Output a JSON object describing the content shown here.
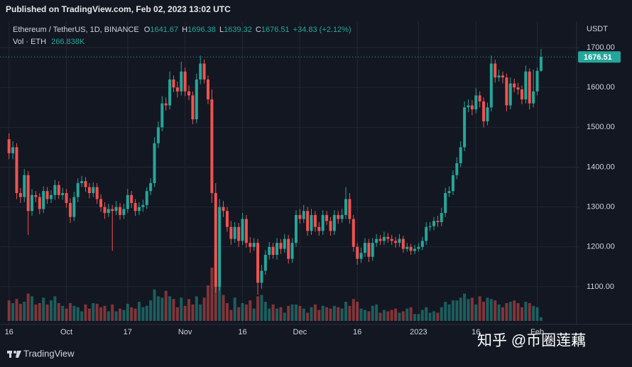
{
  "chart_data": {
    "type": "candlestick",
    "title": "Published on TradingView.com, Feb 02, 2023 13:02 UTC",
    "symbol": "Ethereum / TetherUS, 1D, BINANCE",
    "legend_keys": [
      "O",
      "H",
      "L",
      "C"
    ],
    "change_label": "+34.83 (+2.12%)",
    "volume_title": "Vol · ETH",
    "volume_label": "266.838K",
    "currency": "USDT",
    "watermark": "知乎 @币圈莲藕",
    "brand": "TradingView",
    "up_color": "#26a69a",
    "down_color": "#ef5350",
    "grid": true,
    "ylim": [
      1009,
      1766
    ],
    "yticks": [
      {
        "value": 1100,
        "label": "1100.00"
      },
      {
        "value": 1200,
        "label": "1200.00"
      },
      {
        "value": 1300,
        "label": "1300.00"
      },
      {
        "value": 1400,
        "label": "1400.00"
      },
      {
        "value": 1500,
        "label": "1500.00"
      },
      {
        "value": 1600,
        "label": "1600.00"
      },
      {
        "value": 1700,
        "label": "1700.00"
      }
    ],
    "xticks": [
      {
        "value": 0,
        "label": "16"
      },
      {
        "value": 15,
        "label": "Oct"
      },
      {
        "value": 31,
        "label": "17"
      },
      {
        "value": 46,
        "label": "Nov"
      },
      {
        "value": 61,
        "label": "16"
      },
      {
        "value": 76,
        "label": "Dec"
      },
      {
        "value": 91,
        "label": "16"
      },
      {
        "value": 107,
        "label": "2023"
      },
      {
        "value": 122,
        "label": "16"
      },
      {
        "value": 138,
        "label": "Feb"
      }
    ],
    "open": [
      1470,
      1435,
      1450,
      1335,
      1325,
      1380,
      1290,
      1330,
      1325,
      1295,
      1340,
      1320,
      1330,
      1355,
      1330,
      1335,
      1310,
      1275,
      1325,
      1360,
      1365,
      1350,
      1335,
      1350,
      1320,
      1300,
      1285,
      1295,
      1290,
      1300,
      1280,
      1295,
      1330,
      1310,
      1290,
      1300,
      1305,
      1340,
      1360,
      1460,
      1500,
      1560,
      1555,
      1620,
      1600,
      1590,
      1640,
      1590,
      1580,
      1520,
      1620,
      1660,
      1620,
      1570,
      1335,
      1100,
      1300,
      1290,
      1250,
      1220,
      1250,
      1215,
      1270,
      1210,
      1200,
      1210,
      1110,
      1140,
      1180,
      1200,
      1180,
      1210,
      1195,
      1220,
      1170,
      1210,
      1280,
      1270,
      1290,
      1240,
      1280,
      1250,
      1240,
      1280,
      1265,
      1240,
      1280,
      1270,
      1280,
      1320,
      1270,
      1200,
      1170,
      1185,
      1210,
      1175,
      1210,
      1220,
      1215,
      1225,
      1220,
      1215,
      1210,
      1220,
      1195,
      1200,
      1190,
      1195,
      1200,
      1215,
      1250,
      1252,
      1265,
      1262,
      1285,
      1335,
      1340,
      1380,
      1410,
      1450,
      1550,
      1555,
      1545,
      1580,
      1565,
      1515,
      1550,
      1660,
      1625,
      1630,
      1625,
      1555,
      1610,
      1600,
      1595,
      1570,
      1640,
      1560,
      1590,
      1641.67
    ],
    "high": [
      1485,
      1465,
      1460,
      1348,
      1395,
      1390,
      1345,
      1340,
      1335,
      1352,
      1350,
      1342,
      1368,
      1365,
      1348,
      1345,
      1322,
      1338,
      1372,
      1378,
      1375,
      1360,
      1362,
      1360,
      1332,
      1312,
      1308,
      1305,
      1315,
      1310,
      1308,
      1345,
      1340,
      1320,
      1312,
      1318,
      1350,
      1372,
      1475,
      1515,
      1578,
      1575,
      1640,
      1630,
      1615,
      1665,
      1650,
      1605,
      1590,
      1635,
      1680,
      1670,
      1630,
      1595,
      1360,
      1320,
      1315,
      1300,
      1265,
      1262,
      1260,
      1285,
      1280,
      1225,
      1222,
      1220,
      1155,
      1192,
      1212,
      1210,
      1222,
      1220,
      1232,
      1230,
      1222,
      1292,
      1295,
      1305,
      1300,
      1295,
      1290,
      1262,
      1292,
      1290,
      1275,
      1292,
      1290,
      1295,
      1350,
      1335,
      1280,
      1210,
      1198,
      1222,
      1220,
      1222,
      1232,
      1230,
      1238,
      1235,
      1230,
      1225,
      1232,
      1228,
      1210,
      1208,
      1205,
      1210,
      1225,
      1262,
      1262,
      1275,
      1278,
      1298,
      1348,
      1352,
      1392,
      1425,
      1465,
      1565,
      1570,
      1568,
      1598,
      1590,
      1575,
      1562,
      1680,
      1670,
      1645,
      1640,
      1635,
      1625,
      1622,
      1612,
      1605,
      1655,
      1648,
      1645,
      1650,
      1696.38
    ],
    "low": [
      1420,
      1420,
      1320,
      1310,
      1312,
      1230,
      1278,
      1312,
      1282,
      1285,
      1308,
      1310,
      1318,
      1320,
      1318,
      1298,
      1260,
      1265,
      1312,
      1350,
      1338,
      1322,
      1325,
      1308,
      1288,
      1270,
      1275,
      1190,
      1280,
      1268,
      1270,
      1285,
      1298,
      1278,
      1280,
      1288,
      1295,
      1330,
      1350,
      1448,
      1490,
      1542,
      1545,
      1588,
      1575,
      1580,
      1578,
      1568,
      1508,
      1510,
      1608,
      1610,
      1558,
      1310,
      1085,
      1090,
      1275,
      1238,
      1205,
      1210,
      1200,
      1205,
      1198,
      1185,
      1190,
      1080,
      1095,
      1130,
      1168,
      1170,
      1168,
      1182,
      1185,
      1158,
      1160,
      1200,
      1258,
      1260,
      1228,
      1230,
      1238,
      1228,
      1230,
      1255,
      1228,
      1230,
      1258,
      1260,
      1270,
      1258,
      1188,
      1155,
      1160,
      1175,
      1162,
      1165,
      1200,
      1205,
      1205,
      1210,
      1205,
      1198,
      1200,
      1185,
      1188,
      1180,
      1182,
      1188,
      1192,
      1205,
      1240,
      1242,
      1250,
      1252,
      1275,
      1325,
      1330,
      1370,
      1400,
      1440,
      1538,
      1530,
      1535,
      1550,
      1500,
      1505,
      1540,
      1612,
      1615,
      1610,
      1540,
      1545,
      1588,
      1582,
      1558,
      1560,
      1545,
      1550,
      1580,
      1639.32
    ],
    "close": [
      1435,
      1450,
      1335,
      1325,
      1380,
      1290,
      1330,
      1325,
      1295,
      1340,
      1320,
      1330,
      1355,
      1330,
      1335,
      1310,
      1275,
      1325,
      1360,
      1365,
      1350,
      1335,
      1350,
      1320,
      1300,
      1285,
      1295,
      1290,
      1300,
      1280,
      1295,
      1330,
      1310,
      1290,
      1300,
      1305,
      1340,
      1360,
      1460,
      1500,
      1560,
      1555,
      1620,
      1600,
      1590,
      1640,
      1590,
      1580,
      1520,
      1620,
      1660,
      1620,
      1570,
      1335,
      1100,
      1300,
      1290,
      1250,
      1220,
      1250,
      1215,
      1270,
      1210,
      1200,
      1210,
      1110,
      1140,
      1180,
      1200,
      1180,
      1210,
      1195,
      1220,
      1170,
      1210,
      1280,
      1270,
      1290,
      1240,
      1280,
      1250,
      1240,
      1280,
      1265,
      1240,
      1280,
      1270,
      1280,
      1320,
      1270,
      1200,
      1170,
      1185,
      1210,
      1175,
      1210,
      1220,
      1215,
      1225,
      1220,
      1215,
      1210,
      1220,
      1195,
      1200,
      1190,
      1195,
      1200,
      1215,
      1250,
      1252,
      1265,
      1262,
      1285,
      1335,
      1340,
      1380,
      1410,
      1450,
      1550,
      1555,
      1545,
      1580,
      1565,
      1515,
      1550,
      1660,
      1625,
      1630,
      1625,
      1555,
      1610,
      1600,
      1595,
      1570,
      1640,
      1560,
      1590,
      1641.67,
      1676.51
    ],
    "volume": [
      1500000,
      1300000,
      1600000,
      1250000,
      1400000,
      2000000,
      1800000,
      1200000,
      1300000,
      1700000,
      1200000,
      1500000,
      1800000,
      1300000,
      1100000,
      900000,
      1300000,
      1100000,
      1000000,
      700000,
      1200000,
      900000,
      1300000,
      1250000,
      1000000,
      1100000,
      700000,
      1200000,
      700000,
      900000,
      800000,
      1250000,
      1000000,
      900000,
      1400000,
      1000000,
      1100000,
      1500000,
      2300000,
      1800000,
      1700000,
      2200000,
      1800000,
      1600000,
      1000000,
      1700000,
      1100000,
      1600000,
      1200000,
      1800000,
      1200000,
      1700000,
      2600000,
      3900000,
      5200000,
      2500000,
      1900000,
      1300000,
      800000,
      1700000,
      1000000,
      1300000,
      1200000,
      1500000,
      900000,
      1800000,
      1900000,
      1400000,
      900000,
      1200000,
      900000,
      1000000,
      600000,
      1100000,
      1200000,
      1200000,
      1100000,
      900000,
      600000,
      1000000,
      1200000,
      800000,
      1100000,
      1000000,
      900000,
      1100000,
      1000000,
      900000,
      1400000,
      1100000,
      1600000,
      1400000,
      900000,
      800000,
      700000,
      1100000,
      1200000,
      600000,
      800000,
      700000,
      800000,
      900000,
      600000,
      700000,
      900000,
      1000000,
      500000,
      500000,
      800000,
      1000000,
      600000,
      700000,
      600000,
      1000000,
      1400000,
      1200000,
      1500000,
      1500000,
      1700000,
      2000000,
      1600000,
      1700000,
      1200000,
      1800000,
      1400000,
      1700000,
      1600000,
      1500000,
      1200000,
      1000000,
      1300000,
      1400000,
      1500000,
      1300000,
      1000000,
      1400000,
      1300000,
      1100000,
      1000000,
      266838
    ]
  }
}
